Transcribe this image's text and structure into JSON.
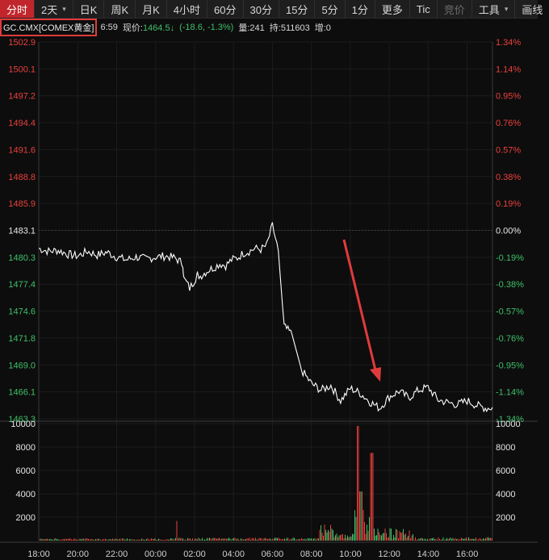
{
  "toolbar": {
    "tabs": [
      {
        "label": "分时",
        "active": true
      },
      {
        "label": "2天",
        "caret": "▾"
      },
      {
        "label": "日K"
      },
      {
        "label": "周K"
      },
      {
        "label": "月K"
      },
      {
        "label": "4小时"
      },
      {
        "label": "60分"
      },
      {
        "label": "30分"
      },
      {
        "label": "15分"
      },
      {
        "label": "5分"
      },
      {
        "label": "1分"
      },
      {
        "label": "更多"
      },
      {
        "label": "Tic"
      }
    ],
    "right": {
      "auction": "竞价",
      "tools": "工具",
      "tools_caret": "▾",
      "draw": "画线"
    }
  },
  "info": {
    "symbol": "GC.CMX[COMEX黄金]",
    "time": "6:59",
    "price_label": "现价:",
    "price": "1464.5",
    "down_arrow": "↓",
    "change": "(-18.6, -1.3%)",
    "volume": "量:241",
    "open_interest": "持:511603",
    "increase": "增:0"
  },
  "colors": {
    "up": "#e8403d",
    "down": "#3fbf6a",
    "line": "#ffffff",
    "arrow": "#e03b3b",
    "accent": "#c0262b"
  },
  "chart_data": {
    "type": "line",
    "prev_close": 1483.1,
    "ylim": [
      1463.3,
      1502.9
    ],
    "price_ticks": [
      "1502.9",
      "1500.1",
      "1497.2",
      "1494.4",
      "1491.6",
      "1488.8",
      "1485.9",
      "1483.1",
      "1480.3",
      "1477.4",
      "1474.6",
      "1471.8",
      "1469.0",
      "1466.1",
      "1463.3"
    ],
    "pct_ticks": [
      "1.34%",
      "1.14%",
      "0.95%",
      "0.76%",
      "0.57%",
      "0.38%",
      "0.19%",
      "0.00%",
      "-0.19%",
      "-0.38%",
      "-0.57%",
      "-0.76%",
      "-0.95%",
      "-1.14%",
      "-1.34%"
    ],
    "time_ticks": [
      "18:00",
      "20:00",
      "22:00",
      "00:00",
      "02:00",
      "04:00",
      "06:00",
      "08:00",
      "10:00",
      "12:00",
      "14:00",
      "16:00"
    ],
    "x": [
      0,
      0.5,
      1,
      1.5,
      2,
      2.5,
      3,
      3.5,
      4,
      4.5,
      5,
      5.5,
      6,
      6.5,
      7,
      7.4,
      7.45,
      7.6,
      7.75,
      7.9,
      8.0,
      8.1,
      8.15,
      8.3,
      8.5,
      8.7,
      9,
      9.3,
      9.6,
      9.9,
      10.2,
      10.5,
      10.8,
      11.1,
      11.4,
      11.7,
      12,
      12.3,
      12.6,
      13,
      13.5,
      14,
      14.5,
      15,
      15.5,
      16,
      16.5,
      17,
      17.5,
      18,
      18.5,
      19,
      19.5,
      20,
      20.5,
      21,
      21.5,
      22,
      22.5,
      23,
      23.3
    ],
    "price": [
      1481.2,
      1480.9,
      1481.0,
      1480.6,
      1480.4,
      1480.9,
      1480.5,
      1480.8,
      1480.3,
      1480.0,
      1480.3,
      1480.1,
      1480.3,
      1480.4,
      1480.2,
      1479.6,
      1478.0,
      1477.6,
      1477.0,
      1477.5,
      1477.9,
      1478.2,
      1478.4,
      1478.3,
      1478.6,
      1478.9,
      1479.2,
      1479.6,
      1479.4,
      1480.0,
      1480.2,
      1480.7,
      1480.9,
      1481.2,
      1481.1,
      1481.5,
      1483.6,
      1481.0,
      1473.0,
      1472.2,
      1468.4,
      1467.0,
      1466.3,
      1466.8,
      1465.2,
      1466.5,
      1466.0,
      1465.1,
      1464.4,
      1465.6,
      1466.2,
      1465.5,
      1466.3,
      1466.6,
      1465.3,
      1465.0,
      1464.8,
      1465.2,
      1464.7,
      1464.4,
      1464.5
    ],
    "volume_ticks": [
      "10000",
      "8000",
      "6000",
      "4000",
      "2000"
    ],
    "volume_max": 10000
  }
}
